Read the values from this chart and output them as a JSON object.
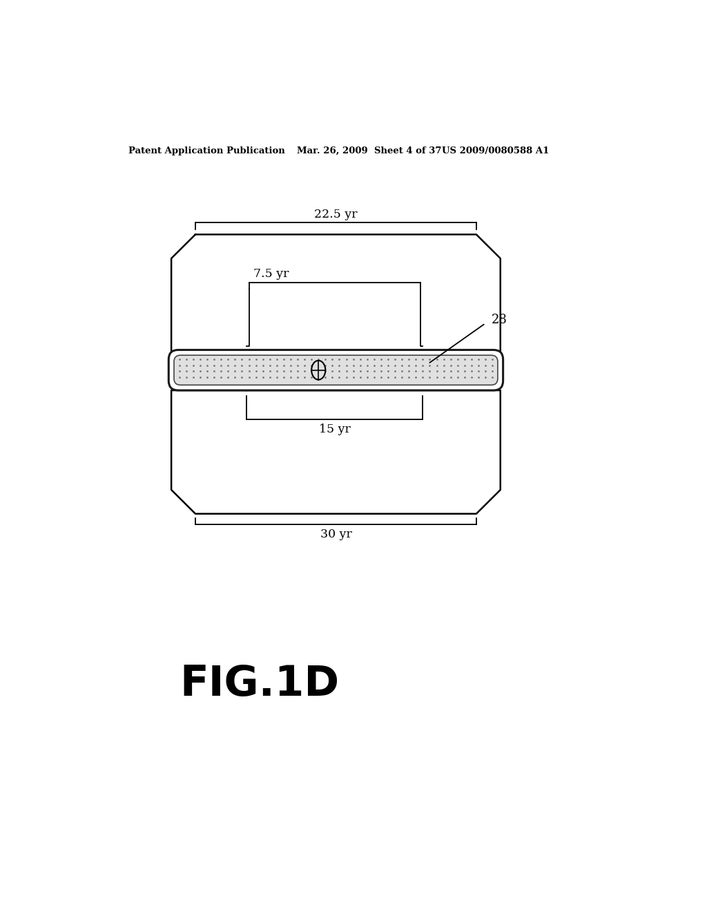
{
  "background_color": "#ffffff",
  "header_left": "Patent Application Publication",
  "header_mid": "Mar. 26, 2009  Sheet 4 of 37",
  "header_right": "US 2009/0080588 A1",
  "figure_label": "FIG.1D",
  "label_28": "28",
  "label_225yr": "22.5 yr",
  "label_75yr": "7.5 yr",
  "label_15yr": "15 yr",
  "label_30yr": "30 yr",
  "outer_shape_color": "#000000",
  "dot_color": "#777777"
}
